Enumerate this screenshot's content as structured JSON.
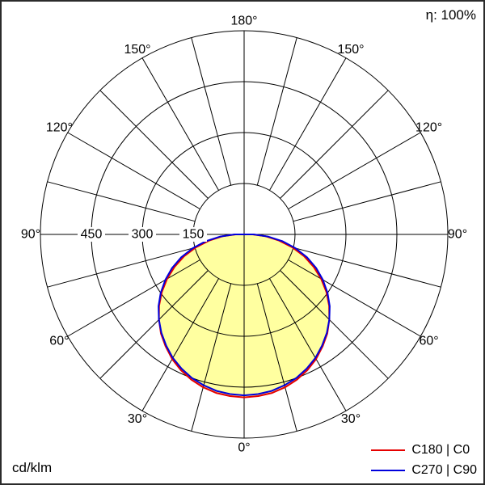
{
  "meta": {
    "efficiency_label": "η: 100%",
    "unit_label": "cd/klm"
  },
  "chart_data": {
    "type": "polar",
    "subtype": "luminous-intensity-distribution",
    "unit": "cd/klm",
    "efficiency_percent": 100,
    "angle_labels_deg": [
      0,
      30,
      60,
      90,
      120,
      150,
      180
    ],
    "spoke_step_deg": 15,
    "radial_ticks": [
      150,
      300,
      450
    ],
    "radial_max": 600,
    "grid_color": "#000000",
    "fill_color": "#ffffa0",
    "series": [
      {
        "name": "C180 | C0",
        "color": "#e60000",
        "gamma": [
          0,
          5,
          10,
          15,
          20,
          25,
          30,
          35,
          40,
          45,
          50,
          55,
          60,
          65,
          70,
          75,
          80,
          85,
          90
        ],
        "values": [
          480,
          478,
          474,
          466,
          455,
          441,
          424,
          403,
          381,
          355,
          327,
          296,
          262,
          226,
          188,
          147,
          105,
          64,
          25
        ]
      },
      {
        "name": "C270 | C90",
        "color": "#0000dd",
        "gamma": [
          0,
          5,
          10,
          15,
          20,
          25,
          30,
          35,
          40,
          45,
          50,
          55,
          60,
          65,
          70,
          75,
          80,
          85,
          90
        ],
        "values": [
          474,
          472,
          468,
          460,
          450,
          436,
          420,
          400,
          379,
          355,
          329,
          300,
          268,
          234,
          197,
          157,
          114,
          70,
          28
        ]
      }
    ]
  }
}
